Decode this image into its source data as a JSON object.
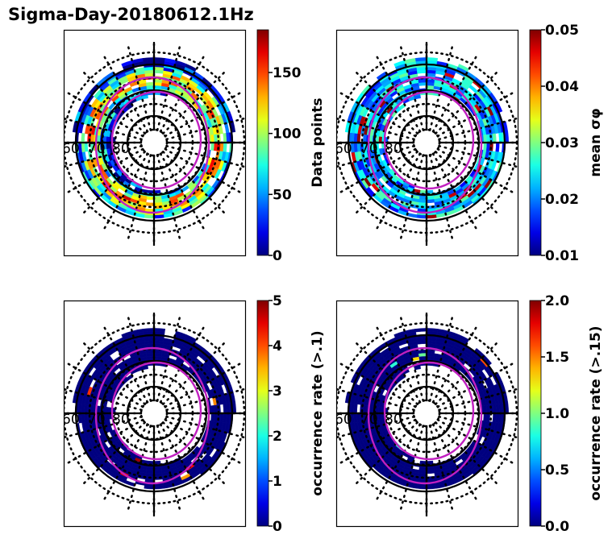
{
  "title": "Sigma-Day-20180612.1Hz",
  "chart_data": [
    {
      "type": "heatmap",
      "projection": "polar (magnetic latitude / MLT dial)",
      "panel": "top-left",
      "colorbar_label": "Data points",
      "colormap": "jet",
      "clim": [
        0,
        185
      ],
      "colorbar_ticks": [
        "0",
        "50",
        "100",
        "150"
      ],
      "colorbar_tick_values": [
        0,
        50,
        100,
        150
      ],
      "latitude_labels": [
        "60",
        "70",
        "80"
      ],
      "overlay": "two magenta auroral oval boundaries",
      "summary": "Ring of bins between ~60-75 deg mostly 20-120 data points; highest (red) near noon and midnight sectors"
    },
    {
      "type": "heatmap",
      "projection": "polar (magnetic latitude / MLT dial)",
      "panel": "top-right",
      "colorbar_label": "mean σφ",
      "colormap": "jet",
      "clim": [
        0.01,
        0.05
      ],
      "colorbar_ticks": [
        "0.01",
        "0.02",
        "0.03",
        "0.04",
        "0.05"
      ],
      "colorbar_tick_values": [
        0.01,
        0.02,
        0.03,
        0.04,
        0.05
      ],
      "latitude_labels": [
        "60",
        "70",
        "80"
      ],
      "overlay": "two magenta auroral oval boundaries",
      "summary": "Mostly 0.02-0.03; maxima (~0.05) near noon at high latitude and on the dusk/dawn flanks"
    },
    {
      "type": "heatmap",
      "projection": "polar (magnetic latitude / MLT dial)",
      "panel": "bottom-left",
      "colorbar_label": "occurrence rate (>.1)",
      "colormap": "jet",
      "clim": [
        0,
        5
      ],
      "colorbar_ticks": [
        "0",
        "1",
        "2",
        "3",
        "4",
        "5"
      ],
      "colorbar_tick_values": [
        0,
        1,
        2,
        3,
        4,
        5
      ],
      "latitude_labels": [
        "60",
        "70",
        "80"
      ],
      "overlay": "two magenta auroral oval boundaries",
      "summary": "Nearly all bins 0; a few isolated bins 1-5 near noon and in the night sector"
    },
    {
      "type": "heatmap",
      "projection": "polar (magnetic latitude / MLT dial)",
      "panel": "bottom-right",
      "colorbar_label": "occurrence rate (>.15)",
      "colormap": "jet",
      "clim": [
        0,
        2
      ],
      "colorbar_ticks": [
        "0.0",
        "0.5",
        "1.0",
        "1.5",
        "2.0"
      ],
      "colorbar_tick_values": [
        0,
        0.5,
        1.0,
        1.5,
        2.0
      ],
      "latitude_labels": [
        "60",
        "70",
        "80"
      ],
      "overlay": "two magenta auroral oval boundaries",
      "summary": "Nearly all bins 0; one small bin ~2 in the post-midnight sector"
    }
  ]
}
